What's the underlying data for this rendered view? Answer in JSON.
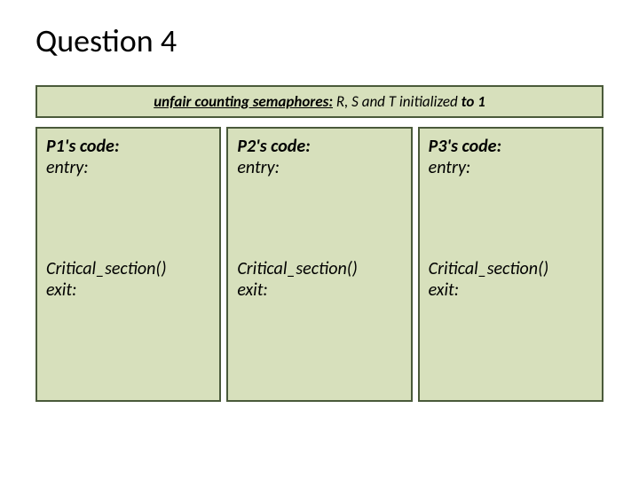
{
  "title": "Question 4",
  "banner": {
    "underline": "unfair counting semaphores:",
    "rest": " R, S and T initialized ",
    "bold": "to 1"
  },
  "columns": [
    {
      "header": "P1's code:",
      "entry": "entry:",
      "cs": "Critical_section()",
      "exit": "exit:"
    },
    {
      "header": "P2's code:",
      "entry": "entry:",
      "cs": "Critical_section()",
      "exit": "exit:"
    },
    {
      "header": "P3's code:",
      "entry": "entry:",
      "cs": "Critical_section()",
      "exit": "exit:"
    }
  ],
  "colors": {
    "box_bg": "#d7e0bc",
    "box_border": "#4a5a3a",
    "page_bg": "#ffffff",
    "text": "#000000"
  },
  "fonts": {
    "title_size": 36,
    "banner_size": 17,
    "body_size": 20
  }
}
